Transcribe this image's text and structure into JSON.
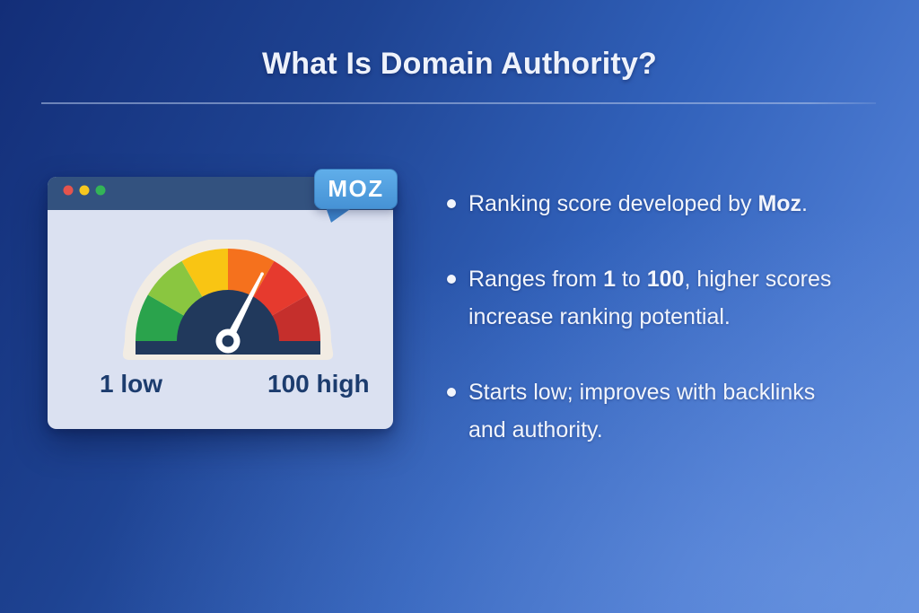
{
  "page": {
    "title": "What Is Domain Authority?"
  },
  "card": {
    "traffic_lights": [
      {
        "name": "red",
        "color": "#e5544d"
      },
      {
        "name": "yellow",
        "color": "#f6c71f"
      },
      {
        "name": "green",
        "color": "#33b457"
      }
    ],
    "badge": {
      "label": "MOZ",
      "color_top": "#60aeea",
      "color_bottom": "#4692d5",
      "tail_color": "#3c80c6"
    },
    "gauge": {
      "min_label": "1 low",
      "max_label": "100 high",
      "label_color": "#1c3c6e",
      "frame_color": "#f2ece3",
      "dial_color": "#21395c",
      "needle_color": "#ffffff",
      "segments": [
        {
          "name": "green",
          "color": "#2aa34c"
        },
        {
          "name": "light-green",
          "color": "#8ac640"
        },
        {
          "name": "yellow",
          "color": "#f9c513"
        },
        {
          "name": "orange",
          "color": "#f5711d"
        },
        {
          "name": "red",
          "color": "#e63a2e"
        },
        {
          "name": "dark-red",
          "color": "#c52f2c"
        }
      ]
    }
  },
  "bullets": [
    {
      "lines": [
        [
          {
            "t": "Ranking score developed by "
          },
          {
            "t": "Moz",
            "b": true
          },
          {
            "t": "."
          }
        ]
      ]
    },
    {
      "lines": [
        [
          {
            "t": "Ranges from "
          },
          {
            "t": "1",
            "b": true
          },
          {
            "t": " to "
          },
          {
            "t": "100",
            "b": true
          },
          {
            "t": ", higher scores"
          }
        ],
        [
          {
            "t": "increase ranking potential."
          }
        ]
      ]
    },
    {
      "lines": [
        [
          {
            "t": "Starts low; improves with backlinks"
          }
        ],
        [
          {
            "t": "and authority."
          }
        ]
      ]
    }
  ]
}
